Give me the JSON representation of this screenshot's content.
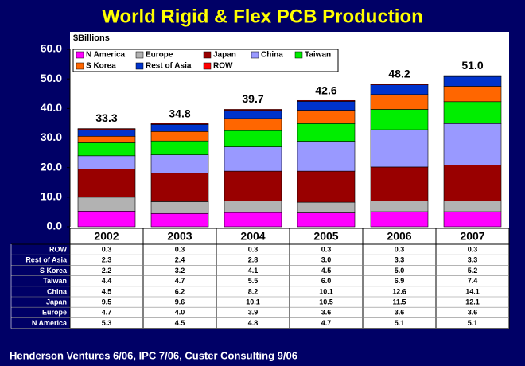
{
  "chart_data": {
    "type": "stacked_bar",
    "title": "World Rigid & Flex PCB Production",
    "y_label": "$Billions",
    "source": "Henderson Ventures 6/06, IPC 7/06, Custer Consulting 9/06",
    "categories": [
      "2002",
      "2003",
      "2004",
      "2005",
      "2006",
      "2007"
    ],
    "ylim": [
      0,
      60
    ],
    "yticks": [
      {
        "value": 0,
        "label": "0.0"
      },
      {
        "value": 10,
        "label": "10.0"
      },
      {
        "value": 20,
        "label": "20.0"
      },
      {
        "value": 30,
        "label": "30.0"
      },
      {
        "value": 40,
        "label": "40.0"
      },
      {
        "value": 50,
        "label": "50.0"
      },
      {
        "value": 60,
        "label": "60.0"
      }
    ],
    "grid": false,
    "legend": "top-left",
    "series": [
      {
        "name": "N America",
        "color": "#ff00ff",
        "values": [
          5.3,
          4.5,
          4.8,
          4.7,
          5.1,
          5.1
        ],
        "value_labels": [
          "5.3",
          "4.5",
          "4.8",
          "4.7",
          "5.1",
          "5.1"
        ]
      },
      {
        "name": "Europe",
        "color": "#b2b2b2",
        "values": [
          4.7,
          4.0,
          3.9,
          3.6,
          3.6,
          3.6
        ],
        "value_labels": [
          "4.7",
          "4.0",
          "3.9",
          "3.6",
          "3.6",
          "3.6"
        ]
      },
      {
        "name": "Japan",
        "color": "#990000",
        "values": [
          9.5,
          9.6,
          10.1,
          10.5,
          11.5,
          12.1
        ],
        "value_labels": [
          "9.5",
          "9.6",
          "10.1",
          "10.5",
          "11.5",
          "12.1"
        ]
      },
      {
        "name": "China",
        "color": "#9999ff",
        "values": [
          4.5,
          6.2,
          8.2,
          10.1,
          12.6,
          14.1
        ],
        "value_labels": [
          "4.5",
          "6.2",
          "8.2",
          "10.1",
          "12.6",
          "14.1"
        ]
      },
      {
        "name": "Taiwan",
        "color": "#00ee00",
        "values": [
          4.4,
          4.7,
          5.5,
          6.0,
          6.9,
          7.4
        ],
        "value_labels": [
          "4.4",
          "4.7",
          "5.5",
          "6.0",
          "6.9",
          "7.4"
        ]
      },
      {
        "name": "S Korea",
        "color": "#ff6600",
        "values": [
          2.2,
          3.2,
          4.1,
          4.5,
          5.0,
          5.2
        ],
        "value_labels": [
          "2.2",
          "3.2",
          "4.1",
          "4.5",
          "5.0",
          "5.2"
        ]
      },
      {
        "name": "Rest of Asia",
        "color": "#0033cc",
        "values": [
          2.3,
          2.4,
          2.8,
          3.0,
          3.3,
          3.3
        ],
        "value_labels": [
          "2.3",
          "2.4",
          "2.8",
          "3.0",
          "3.3",
          "3.3"
        ]
      },
      {
        "name": "ROW",
        "color": "#ff0000",
        "values": [
          0.3,
          0.3,
          0.3,
          0.3,
          0.3,
          0.3
        ],
        "value_labels": [
          "0.3",
          "0.3",
          "0.3",
          "0.3",
          "0.3",
          "0.3"
        ]
      }
    ],
    "totals": {
      "values": [
        33.3,
        34.8,
        39.7,
        42.6,
        48.2,
        51
      ],
      "value_labels": [
        "33.3",
        "34.8",
        "39.7",
        "42.6",
        "48.2",
        "51.0"
      ]
    }
  }
}
